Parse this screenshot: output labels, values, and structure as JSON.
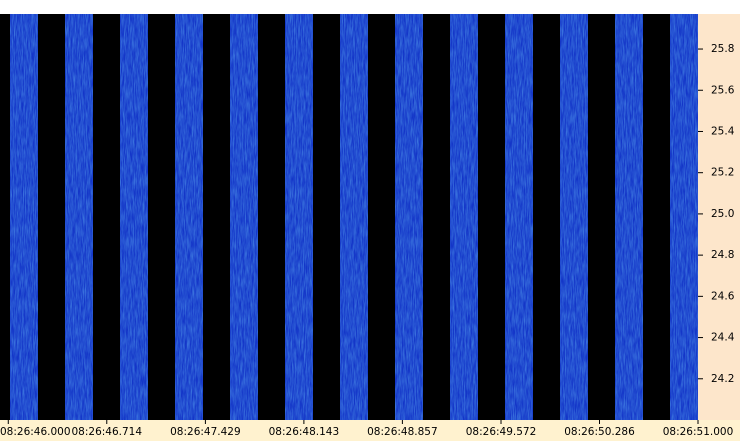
{
  "chart_data": {
    "type": "spectrogram",
    "xticks": [
      {
        "value": 46.0,
        "label": "08:26:46.000"
      },
      {
        "value": 46.714,
        "label": "08:26:46.714"
      },
      {
        "value": 47.429,
        "label": "08:26:47.429"
      },
      {
        "value": 48.143,
        "label": "08:26:48.143"
      },
      {
        "value": 48.857,
        "label": "08:26:48.857"
      },
      {
        "value": 49.572,
        "label": "08:26:49.572"
      },
      {
        "value": 50.286,
        "label": "08:26:50.286"
      },
      {
        "value": 51.0,
        "label": "08:26:51.000"
      }
    ],
    "xlim": [
      45.94,
      51.0
    ],
    "ylim": [
      24.0,
      25.97
    ],
    "yticks": [
      24.2,
      24.4,
      24.6,
      24.8,
      {
        "value": 25.0,
        "label": "25.0"
      },
      25.2,
      25.4,
      25.6,
      25.8
    ]
  }
}
